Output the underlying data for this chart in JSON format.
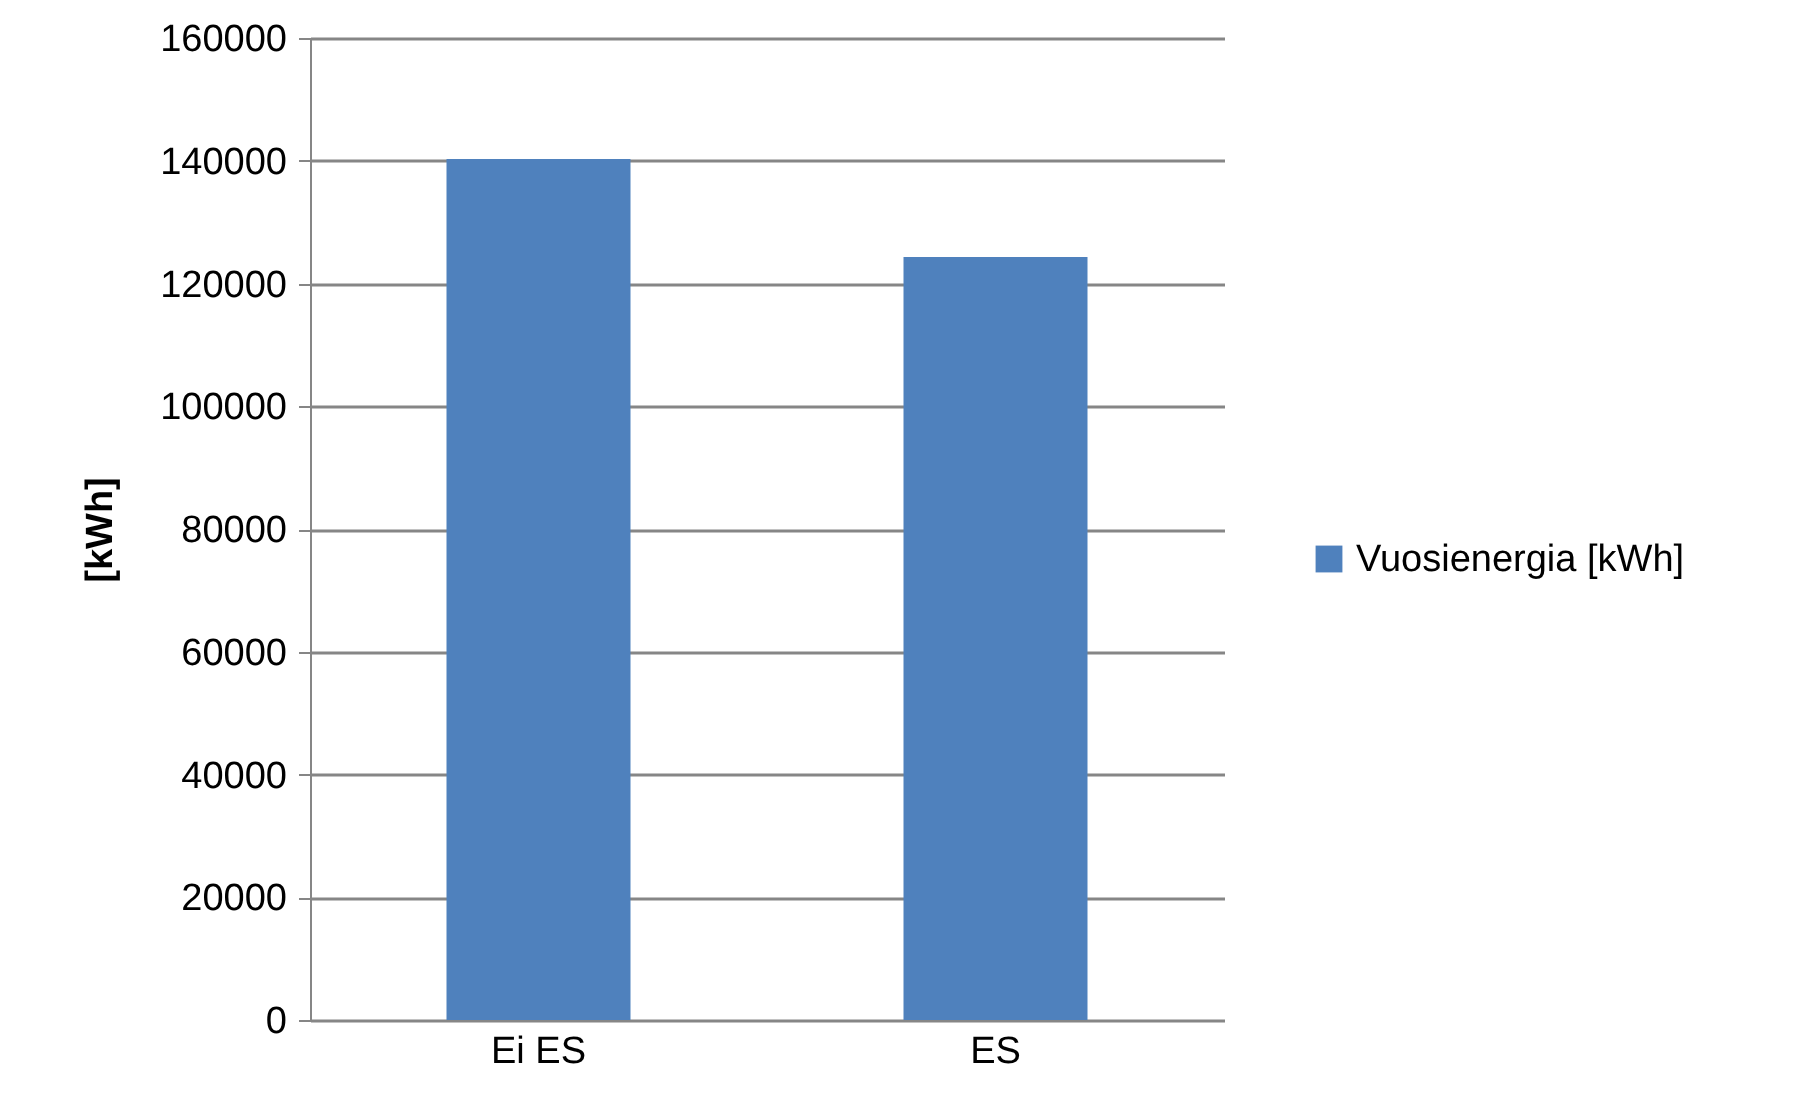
{
  "chart_data": {
    "type": "bar",
    "ylabel": "[kWh]",
    "categories": [
      "Ei ES",
      "ES"
    ],
    "series": [
      {
        "name": "Vuosienergia [kWh]",
        "color": "#4f81bd",
        "values": [
          140300,
          124300
        ]
      }
    ],
    "ylim": [
      0,
      160000
    ],
    "yticks": [
      0,
      20000,
      40000,
      60000,
      80000,
      100000,
      120000,
      140000,
      160000
    ],
    "grid": "y",
    "legend": "right"
  }
}
